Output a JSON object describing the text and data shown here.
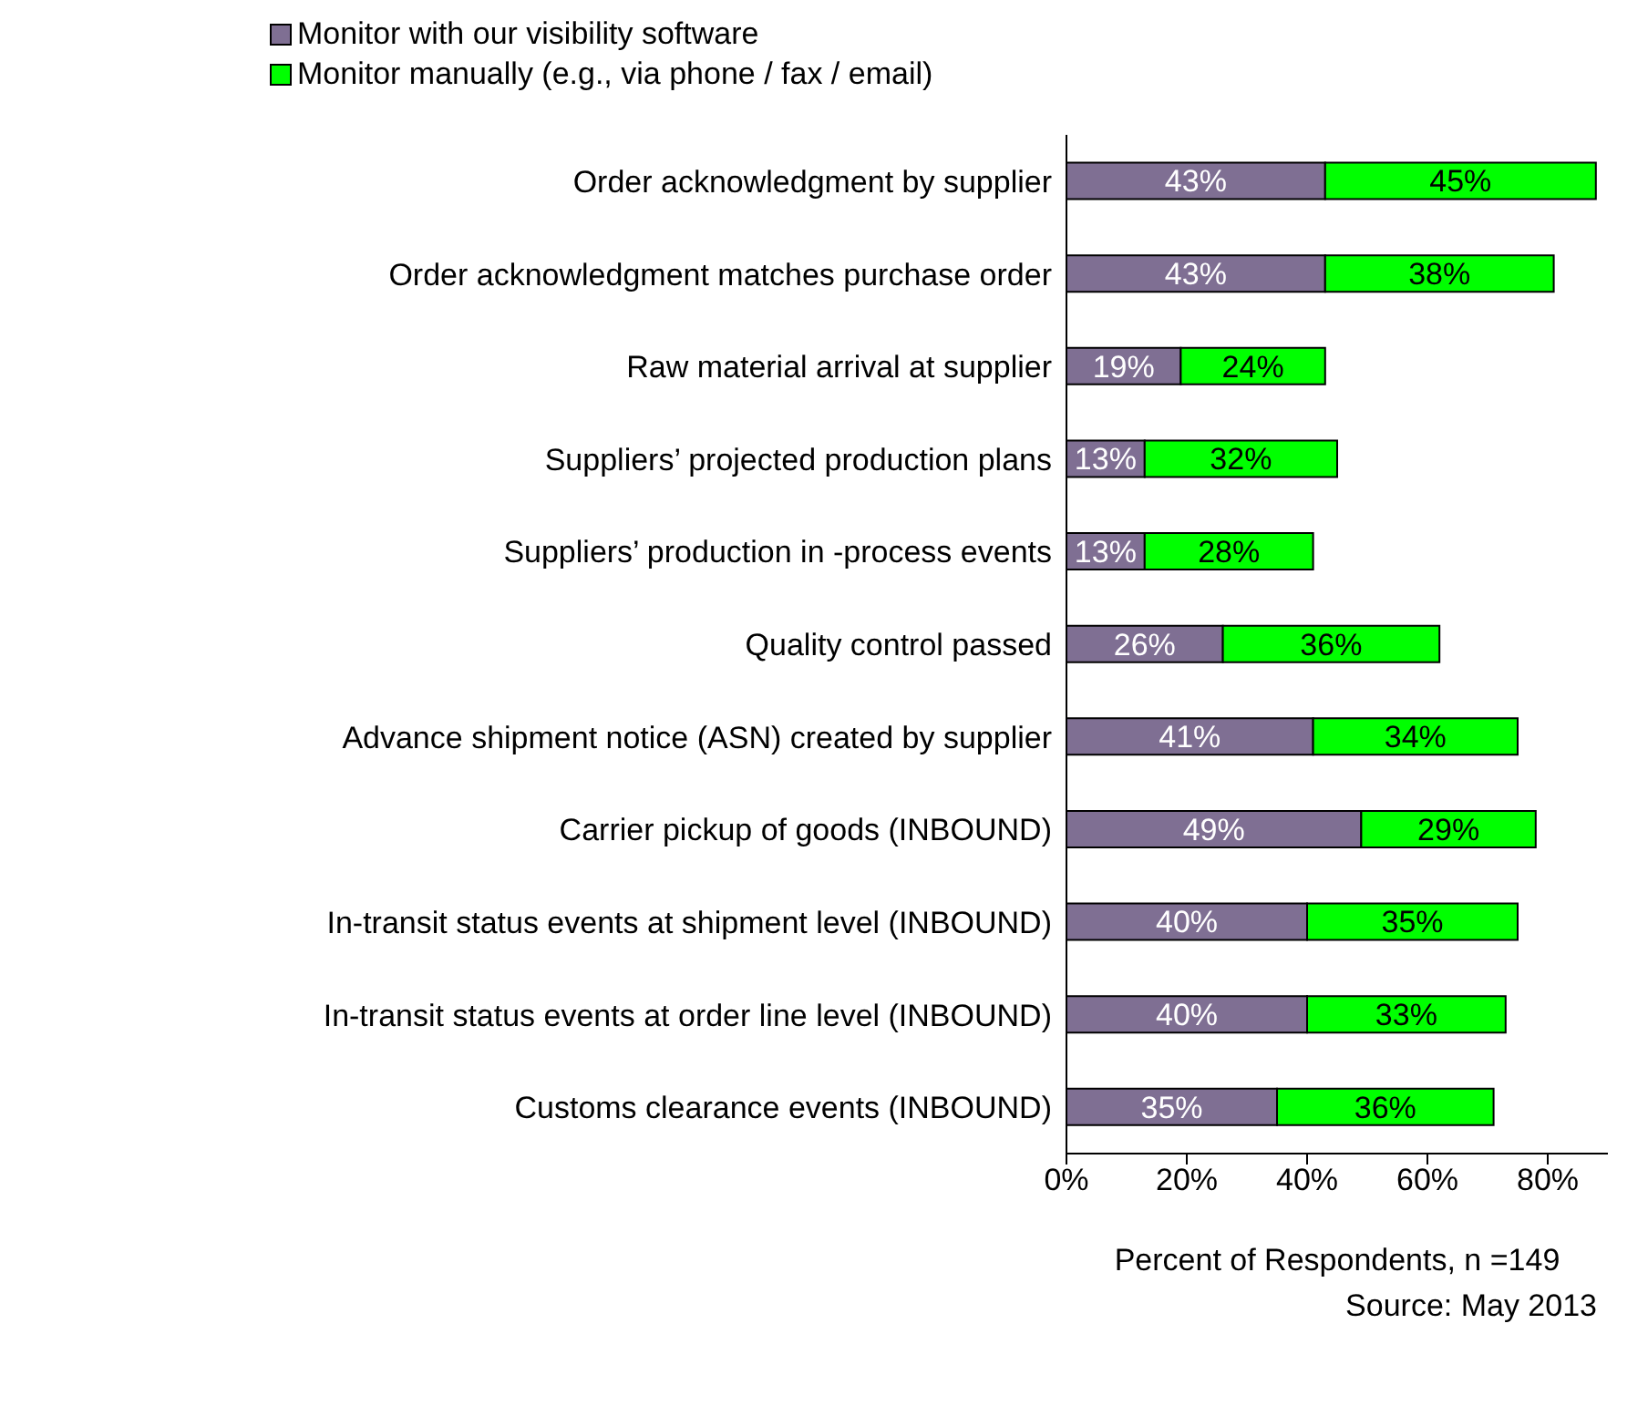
{
  "chart_data": {
    "type": "bar",
    "orientation": "horizontal",
    "stacked": true,
    "legend": "top left",
    "xlabel": "Percent of Respondents, n =149",
    "annotations": [
      "Source: May 2013"
    ],
    "categories": [
      "Order acknowledgment by supplier",
      "Order acknowledgment matches purchase order",
      "Raw material arrival at supplier",
      "Suppliers’ projected production plans",
      "Suppliers’ production in -process events",
      "Quality control passed",
      "Advance shipment notice (ASN) created by supplier",
      "Carrier pickup of goods (INBOUND)",
      "In-transit status events at shipment level (INBOUND)",
      "In-transit status events at order line level (INBOUND)",
      "Customs clearance events (INBOUND)"
    ],
    "series": [
      {
        "name": "Monitor with our visibility software",
        "color": "#7f6f93",
        "values": [
          43,
          43,
          19,
          13,
          13,
          26,
          41,
          49,
          40,
          40,
          35
        ],
        "value_labels": [
          "43%",
          "43%",
          "19%",
          "13%",
          "13%",
          "26%",
          "41%",
          "49%",
          "40%",
          "40%",
          "35%"
        ]
      },
      {
        "name": "Monitor manually (e.g., via phone / fax / email)",
        "color": "#00ff00",
        "values": [
          45,
          38,
          24,
          32,
          28,
          36,
          34,
          29,
          35,
          33,
          36
        ],
        "value_labels": [
          "45%",
          "38%",
          "24%",
          "32%",
          "28%",
          "36%",
          "34%",
          "29%",
          "35%",
          "33%",
          "36%"
        ]
      }
    ],
    "xlim": [
      0,
      90
    ],
    "xticks": [
      {
        "value": 0,
        "label": "0%"
      },
      {
        "value": 20,
        "label": "20%"
      },
      {
        "value": 40,
        "label": "40%"
      },
      {
        "value": 60,
        "label": "60%"
      },
      {
        "value": 80,
        "label": "80%"
      }
    ]
  }
}
